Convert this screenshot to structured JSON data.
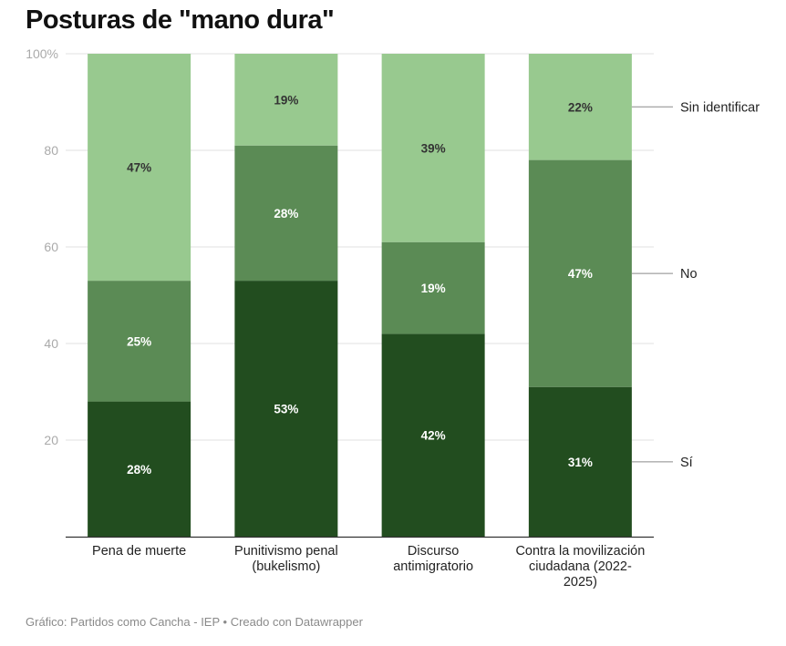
{
  "title": "Posturas de \"mano dura\"",
  "footer": {
    "source": "Gráfico: Partidos como Cancha - IEP",
    "separator": " • ",
    "credit": "Creado con Datawrapper"
  },
  "chart_data": {
    "type": "stacked-bar",
    "title": "Posturas de \"mano dura\"",
    "ylim": [
      0,
      100
    ],
    "yticks": [
      20,
      40,
      60,
      80,
      100
    ],
    "ytick_labels": [
      "20",
      "40",
      "60",
      "80",
      "100%"
    ],
    "categories": [
      [
        "Pena de muerte"
      ],
      [
        "Punitivismo penal",
        "(bukelismo)"
      ],
      [
        "Discurso",
        "antimigratorio"
      ],
      [
        "Contra la movilización",
        "ciudadana (2022-",
        "2025)"
      ]
    ],
    "series": [
      {
        "name": "Sí",
        "color": "#224d1f",
        "label_color": "#ffffff",
        "values": [
          28,
          53,
          42,
          31
        ],
        "labels": [
          "28%",
          "53%",
          "42%",
          "31%"
        ]
      },
      {
        "name": "No",
        "color": "#5b8b55",
        "label_color": "#ffffff",
        "values": [
          25,
          28,
          19,
          47
        ],
        "labels": [
          "25%",
          "28%",
          "19%",
          "47%"
        ]
      },
      {
        "name": "Sin identificar",
        "color": "#98c98f",
        "label_color": "#333333",
        "values": [
          47,
          19,
          39,
          22
        ],
        "labels": [
          "47%",
          "19%",
          "39%",
          "22%"
        ]
      }
    ],
    "legend": "right, inline with last bar"
  }
}
